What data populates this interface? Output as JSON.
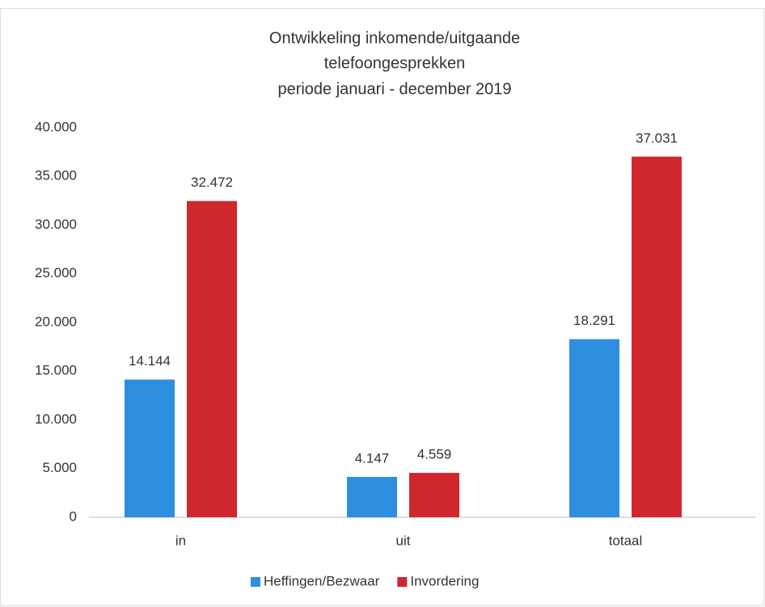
{
  "chart_data": {
    "type": "bar",
    "title": [
      "Ontwikkeling inkomende/uitgaande",
      "telefoongesprekken",
      "periode januari - december 2019"
    ],
    "categories": [
      "in",
      "uit",
      "totaal"
    ],
    "series": [
      {
        "name": "Heffingen/Bezwaar",
        "color": "#2e8fe0",
        "values": [
          14144,
          4147,
          18291
        ],
        "value_labels": [
          "14.144",
          "4.147",
          "18.291"
        ]
      },
      {
        "name": "Invordering",
        "color": "#d0262e",
        "values": [
          32472,
          4559,
          37031
        ],
        "value_labels": [
          "32.472",
          "4.559",
          "37.031"
        ]
      }
    ],
    "ylim": [
      0,
      40000
    ],
    "yticks": [
      0,
      {
        "value": 5000,
        "label": "5.000"
      },
      {
        "value": 10000,
        "label": "10.000"
      },
      {
        "value": 15000,
        "label": "15.000"
      },
      {
        "value": 20000,
        "label": "20.000"
      },
      {
        "value": 25000,
        "label": "25.000"
      },
      {
        "value": 30000,
        "label": "30.000"
      },
      {
        "value": 35000,
        "label": "35.000"
      },
      {
        "value": 40000,
        "label": "40.000"
      }
    ],
    "grid": false,
    "legend": "bottom"
  }
}
